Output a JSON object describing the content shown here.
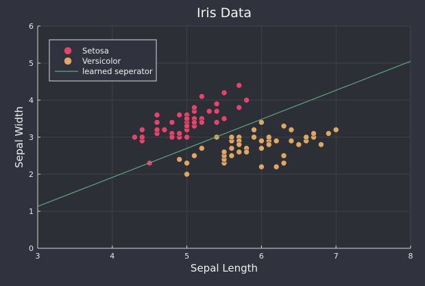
{
  "chart_data": {
    "type": "scatter",
    "title": "Iris Data",
    "xlabel": "Sepal Length",
    "ylabel": "Sepal Width",
    "xlim": [
      3,
      8
    ],
    "ylim": [
      0,
      6
    ],
    "xticks": [
      3,
      4,
      5,
      6,
      7,
      8
    ],
    "yticks": [
      0,
      1,
      2,
      3,
      4,
      5,
      6
    ],
    "grid": true,
    "legend_position": "top-left",
    "background": "#30333e",
    "plot_background": "#2c2f35",
    "series": [
      {
        "name": "Setosa",
        "kind": "scatter",
        "color": "#e8446b",
        "points": [
          [
            5.1,
            3.5
          ],
          [
            4.9,
            3.0
          ],
          [
            4.7,
            3.2
          ],
          [
            4.6,
            3.1
          ],
          [
            5.0,
            3.6
          ],
          [
            5.4,
            3.9
          ],
          [
            4.6,
            3.4
          ],
          [
            5.0,
            3.4
          ],
          [
            4.4,
            2.9
          ],
          [
            4.9,
            3.1
          ],
          [
            5.4,
            3.7
          ],
          [
            4.8,
            3.4
          ],
          [
            4.8,
            3.0
          ],
          [
            4.3,
            3.0
          ],
          [
            5.8,
            4.0
          ],
          [
            5.7,
            4.4
          ],
          [
            5.4,
            3.9
          ],
          [
            5.1,
            3.5
          ],
          [
            5.7,
            3.8
          ],
          [
            5.1,
            3.8
          ],
          [
            5.4,
            3.4
          ],
          [
            5.1,
            3.7
          ],
          [
            4.6,
            3.6
          ],
          [
            5.1,
            3.3
          ],
          [
            4.8,
            3.4
          ],
          [
            5.0,
            3.0
          ],
          [
            5.0,
            3.4
          ],
          [
            5.2,
            3.5
          ],
          [
            5.2,
            3.4
          ],
          [
            4.7,
            3.2
          ],
          [
            4.8,
            3.1
          ],
          [
            5.4,
            3.4
          ],
          [
            5.2,
            4.1
          ],
          [
            5.5,
            4.2
          ],
          [
            4.9,
            3.1
          ],
          [
            5.0,
            3.2
          ],
          [
            5.5,
            3.5
          ],
          [
            4.9,
            3.6
          ],
          [
            4.4,
            3.0
          ],
          [
            5.1,
            3.4
          ],
          [
            5.0,
            3.5
          ],
          [
            4.5,
            2.3
          ],
          [
            4.4,
            3.2
          ],
          [
            5.0,
            3.5
          ],
          [
            5.1,
            3.8
          ],
          [
            4.8,
            3.0
          ],
          [
            5.1,
            3.8
          ],
          [
            4.6,
            3.2
          ],
          [
            5.3,
            3.7
          ],
          [
            5.0,
            3.3
          ]
        ]
      },
      {
        "name": "Versicolor",
        "kind": "scatter",
        "color": "#e0a764",
        "points": [
          [
            7.0,
            3.2
          ],
          [
            6.4,
            3.2
          ],
          [
            6.9,
            3.1
          ],
          [
            5.5,
            2.3
          ],
          [
            6.5,
            2.8
          ],
          [
            5.7,
            2.8
          ],
          [
            6.3,
            3.3
          ],
          [
            4.9,
            2.4
          ],
          [
            6.6,
            2.9
          ],
          [
            5.2,
            2.7
          ],
          [
            5.0,
            2.0
          ],
          [
            5.9,
            3.0
          ],
          [
            6.0,
            2.2
          ],
          [
            6.1,
            2.9
          ],
          [
            5.6,
            2.9
          ],
          [
            6.7,
            3.1
          ],
          [
            5.6,
            3.0
          ],
          [
            5.8,
            2.7
          ],
          [
            6.2,
            2.2
          ],
          [
            5.6,
            2.5
          ],
          [
            5.9,
            3.2
          ],
          [
            6.1,
            2.8
          ],
          [
            6.3,
            2.5
          ],
          [
            6.1,
            2.8
          ],
          [
            6.4,
            2.9
          ],
          [
            6.6,
            3.0
          ],
          [
            6.8,
            2.8
          ],
          [
            6.7,
            3.0
          ],
          [
            6.0,
            2.9
          ],
          [
            5.7,
            2.6
          ],
          [
            5.5,
            2.4
          ],
          [
            5.5,
            2.4
          ],
          [
            5.8,
            2.7
          ],
          [
            6.0,
            2.7
          ],
          [
            5.4,
            3.0
          ],
          [
            6.0,
            3.4
          ],
          [
            6.7,
            3.1
          ],
          [
            6.3,
            2.3
          ],
          [
            5.6,
            3.0
          ],
          [
            5.5,
            2.5
          ],
          [
            5.5,
            2.6
          ],
          [
            6.1,
            3.0
          ],
          [
            5.8,
            2.6
          ],
          [
            5.0,
            2.3
          ],
          [
            5.6,
            2.7
          ],
          [
            5.7,
            3.0
          ],
          [
            5.7,
            2.9
          ],
          [
            6.2,
            2.9
          ],
          [
            5.1,
            2.5
          ],
          [
            5.7,
            2.8
          ]
        ]
      },
      {
        "name": "learned seperator",
        "kind": "line",
        "color": "#5fa77f",
        "points": [
          [
            3,
            1.13
          ],
          [
            8,
            5.05
          ]
        ]
      }
    ]
  }
}
